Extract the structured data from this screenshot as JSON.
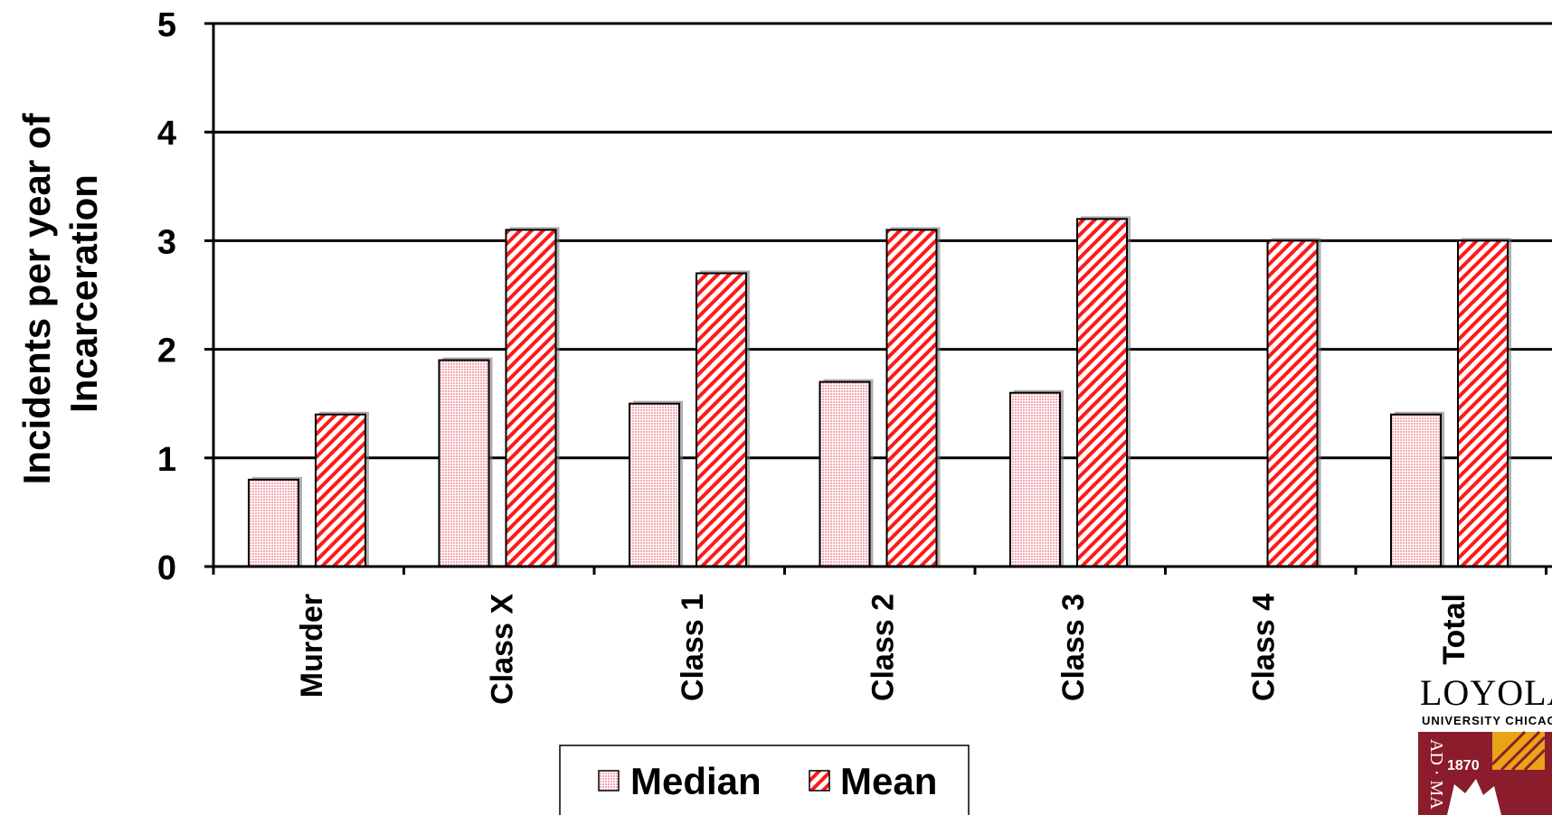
{
  "chart_data": {
    "type": "bar",
    "categories": [
      "Murder",
      "Class X",
      "Class 1",
      "Class 2",
      "Class 3",
      "Class 4",
      "Total"
    ],
    "series": [
      {
        "name": "Median",
        "values": [
          0.8,
          1.9,
          1.5,
          1.7,
          1.6,
          null,
          1.4
        ],
        "color": "#f9c0c8",
        "pattern": "dotted"
      },
      {
        "name": "Mean",
        "values": [
          1.4,
          3.1,
          2.7,
          3.1,
          3.2,
          3.0,
          3.0
        ],
        "color": "#ff0000",
        "pattern": "diagonal-hatch"
      }
    ],
    "title": "",
    "xlabel": "",
    "ylabel": "Incidents per year of Incarceration",
    "ylabel_lines": [
      "Incidents per year of",
      "Incarceration"
    ],
    "ylim": [
      0,
      5
    ],
    "yticks": [
      0,
      1,
      2,
      3,
      4,
      5
    ],
    "grid": true,
    "legend_position": "bottom"
  },
  "logo": {
    "name": "LOYOLA",
    "subtitle": "UNIVERSITY CHICAGO",
    "year": "1870",
    "side_text": "AD · MA",
    "colors": {
      "maroon": "#8b1c2c",
      "gold": "#e8a317"
    }
  }
}
